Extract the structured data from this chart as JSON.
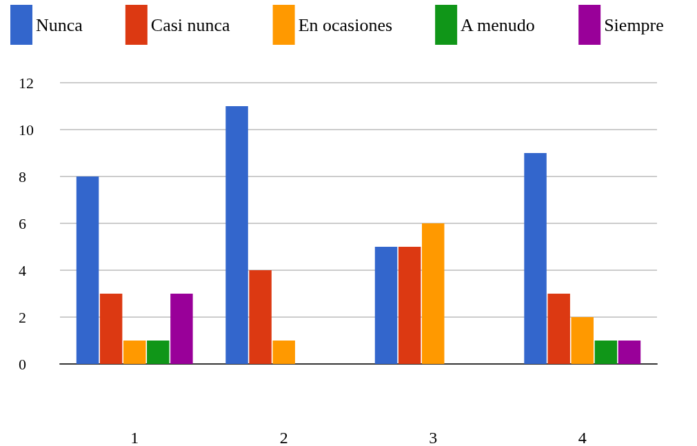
{
  "chart_data": {
    "type": "bar",
    "categories": [
      "1",
      "2",
      "3",
      "4"
    ],
    "series": [
      {
        "name": "Nunca",
        "color": "#3366cc",
        "values": [
          8,
          11,
          5,
          9
        ]
      },
      {
        "name": "Casi nunca",
        "color": "#dc3912",
        "values": [
          3,
          4,
          5,
          3
        ]
      },
      {
        "name": "En ocasiones",
        "color": "#ff9900",
        "values": [
          1,
          1,
          6,
          2
        ]
      },
      {
        "name": "A menudo",
        "color": "#109618",
        "values": [
          1,
          0,
          0,
          1
        ]
      },
      {
        "name": "Siempre",
        "color": "#990099",
        "values": [
          3,
          0,
          0,
          1
        ]
      }
    ],
    "ylim": [
      0,
      12
    ],
    "yticks": [
      0,
      2,
      4,
      6,
      8,
      10,
      12
    ],
    "grid": "y",
    "legend": "top"
  }
}
